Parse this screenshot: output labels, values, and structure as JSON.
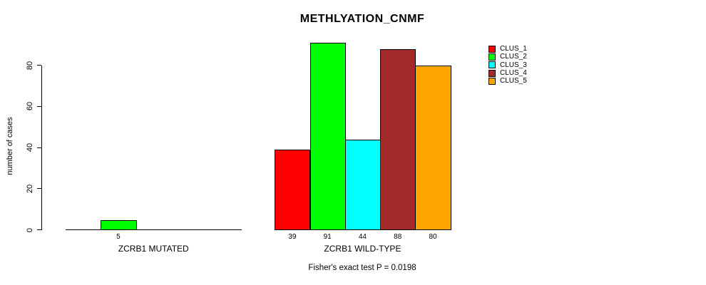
{
  "chart_data": {
    "type": "bar",
    "title": "METHLYATION_CNMF",
    "xlabel": "",
    "ylabel": "number of cases",
    "yticks": [
      0,
      20,
      40,
      60,
      80
    ],
    "ylim": [
      0,
      91
    ],
    "grid": false,
    "legend_position": "top-right",
    "categories": [
      "ZCRB1 MUTATED",
      "ZCRB1 WILD-TYPE"
    ],
    "series": [
      {
        "name": "CLUS_1",
        "color": "#FF0000",
        "values": [
          0,
          39
        ]
      },
      {
        "name": "CLUS_2",
        "color": "#00FF00",
        "values": [
          5,
          91
        ]
      },
      {
        "name": "CLUS_3",
        "color": "#00FFFF",
        "values": [
          0,
          44
        ]
      },
      {
        "name": "CLUS_4",
        "color": "#A52A2A",
        "values": [
          0,
          88
        ]
      },
      {
        "name": "CLUS_5",
        "color": "#FFA500",
        "values": [
          0,
          80
        ]
      }
    ],
    "value_labels_visible": true,
    "zero_values_unlabeled": true,
    "visible_value_labels": {
      "ZCRB1 MUTATED": [
        "5"
      ],
      "ZCRB1 WILD-TYPE": [
        "39",
        "91",
        "44",
        "88",
        "80"
      ]
    },
    "footnote": "Fisher's exact test P = 0.0198",
    "colors": {
      "background": "#FFFFFF",
      "axis": "#000000",
      "bar_border": "#000000",
      "text": "#000000"
    }
  }
}
